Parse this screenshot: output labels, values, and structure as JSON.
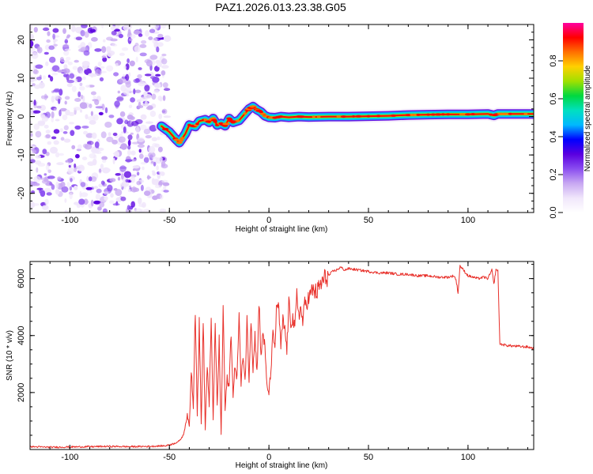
{
  "title": "PAZ1.2026.013.23.38.G05",
  "chart_data": [
    {
      "type": "heatmap",
      "name": "spectrogram",
      "xlabel": "Height of straight line (km)",
      "ylabel": "Frequency (Hz)",
      "xlim": [
        -120,
        133
      ],
      "ylim": [
        -25,
        24
      ],
      "xticks": [
        -100,
        -50,
        0,
        50,
        100
      ],
      "xtick_labels": [
        "-100",
        "-50",
        "0",
        "50",
        "100"
      ],
      "yticks": [
        -20,
        -10,
        0,
        10,
        20
      ],
      "ytick_labels": [
        "-20",
        "-10",
        "0",
        "10",
        "20"
      ],
      "noise_region_x": [
        -120,
        -51
      ],
      "ridge": {
        "x": [
          -54,
          -50,
          -47,
          -45,
          -42,
          -40,
          -37,
          -35,
          -32,
          -30,
          -28,
          -26,
          -24,
          -22,
          -20,
          -18,
          -15,
          -12,
          -10,
          -8,
          -6,
          -4,
          -2,
          0,
          3,
          6,
          10,
          15,
          20,
          30,
          40,
          50,
          60,
          70,
          80,
          90,
          100,
          110,
          113,
          115,
          120,
          125,
          133
        ],
        "y": [
          -2.5,
          -4,
          -5.8,
          -6.8,
          -4.5,
          -2.2,
          -2.6,
          -1.2,
          -0.8,
          -1.5,
          -0.5,
          -2.2,
          -1.8,
          -2.4,
          -0.5,
          -1.5,
          -1.0,
          0.8,
          2.0,
          2.6,
          1.8,
          1.2,
          0.2,
          -0.2,
          -0.3,
          0.0,
          -0.2,
          0.0,
          -0.1,
          0.0,
          0.0,
          0.1,
          0.2,
          0.4,
          0.5,
          0.6,
          0.6,
          0.7,
          0.3,
          0.7,
          0.7,
          0.7,
          0.7
        ]
      },
      "colorbar": {
        "label": "Normalized spectral amplitude",
        "range": [
          0.0,
          1.0
        ],
        "ticks": [
          0.0,
          0.2,
          0.4,
          0.6,
          0.8
        ],
        "tick_labels": [
          "0.0",
          "0.2",
          "0.4",
          "0.6",
          "0.8"
        ],
        "colormap": [
          "#ffffff",
          "#f0e6fb",
          "#c8a8f2",
          "#8a4df0",
          "#5a00e0",
          "#0000ff",
          "#00b8ff",
          "#00e0c0",
          "#00d840",
          "#a0e000",
          "#ffd000",
          "#ff7000",
          "#ff0000",
          "#ff00a0"
        ]
      }
    },
    {
      "type": "line",
      "name": "snr",
      "xlabel": "Height of straight line (km)",
      "ylabel": "SNR (10 * v/v)",
      "xlim": [
        -120,
        133
      ],
      "ylim": [
        0,
        6600
      ],
      "xticks": [
        -100,
        -50,
        0,
        50,
        100
      ],
      "xtick_labels": [
        "-100",
        "-50",
        "0",
        "50",
        "100"
      ],
      "yticks": [
        2000,
        4000,
        6000
      ],
      "ytick_labels": [
        "2000",
        "4000",
        "6000"
      ],
      "color": "#e8302a",
      "series": [
        {
          "x": [
            -120,
            -110,
            -100,
            -90,
            -80,
            -70,
            -60,
            -52,
            -48,
            -45,
            -43,
            -41,
            -40,
            -39,
            -38,
            -37,
            -36,
            -35,
            -34,
            -33,
            -32,
            -31,
            -30,
            -29,
            -28,
            -27,
            -26,
            -25,
            -24,
            -23,
            -22,
            -21,
            -20,
            -19,
            -18,
            -17,
            -16,
            -15,
            -14,
            -13,
            -12,
            -11,
            -10,
            -9,
            -8,
            -7,
            -6,
            -5,
            -4,
            -3,
            -2,
            -1,
            0,
            1,
            2,
            3,
            4,
            5,
            6,
            7,
            8,
            9,
            10,
            11,
            12,
            13,
            14,
            15,
            16,
            17,
            18,
            20,
            22,
            24,
            26,
            28,
            30,
            32,
            34,
            36,
            38,
            40,
            45,
            50,
            55,
            60,
            65,
            70,
            75,
            80,
            85,
            90,
            93,
            94,
            95,
            96,
            100,
            105,
            108,
            110,
            112,
            113,
            114,
            115,
            116,
            120,
            125,
            130,
            133
          ],
          "y": [
            100,
            80,
            90,
            100,
            110,
            100,
            110,
            130,
            200,
            300,
            500,
            1200,
            800,
            2800,
            1500,
            5000,
            1200,
            4400,
            900,
            4500,
            700,
            3000,
            1500,
            4700,
            1000,
            4400,
            1500,
            3800,
            500,
            5000,
            1400,
            2500,
            2200,
            4200,
            1800,
            3000,
            2500,
            4800,
            2200,
            3400,
            2400,
            4500,
            2500,
            4700,
            2800,
            4000,
            2700,
            5200,
            3200,
            4200,
            3500,
            2200,
            2000,
            2800,
            4000,
            3600,
            5200,
            4800,
            3600,
            4500,
            4200,
            3500,
            5100,
            4500,
            4600,
            4200,
            5400,
            4800,
            4900,
            4500,
            5100,
            5300,
            5600,
            5500,
            5800,
            6000,
            6100,
            6250,
            6300,
            6400,
            6300,
            6350,
            6300,
            6250,
            6200,
            6200,
            6150,
            6150,
            6100,
            6100,
            6050,
            6050,
            6100,
            5950,
            5500,
            6450,
            6100,
            6000,
            6050,
            6000,
            6300,
            5800,
            6300,
            6300,
            3700,
            3650,
            3620,
            3600,
            3550
          ]
        }
      ]
    }
  ]
}
